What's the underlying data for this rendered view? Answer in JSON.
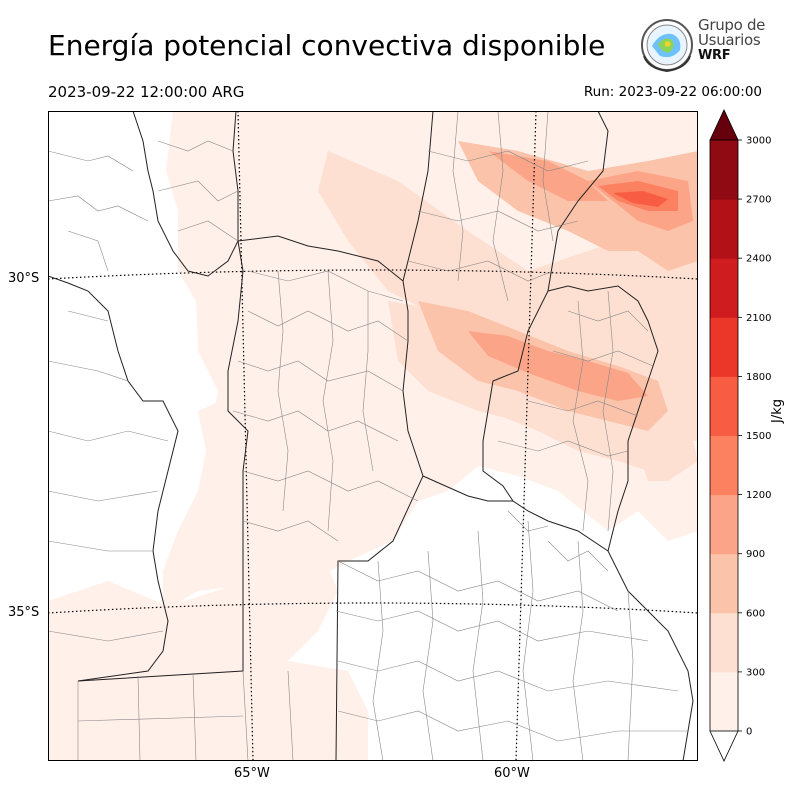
{
  "header": {
    "title": "Energía potencial convectiva disponible",
    "valid_time": "2023-09-22 12:00:00 ARG",
    "run_time": "Run: 2023-09-22 06:00:00"
  },
  "logo": {
    "line1": "Grupo de",
    "line2": "Usuarios",
    "line3": "WRF"
  },
  "map": {
    "lat_labels": [
      "30°S",
      "35°S"
    ],
    "lon_labels": [
      "65°W",
      "60°W"
    ]
  },
  "colorbar": {
    "unit": "J/kg",
    "ticks": [
      "0",
      "300",
      "600",
      "900",
      "1200",
      "1500",
      "1800",
      "2100",
      "2400",
      "2700",
      "3000"
    ],
    "colors": [
      "#fff0ea",
      "#fee0d2",
      "#fcc3ab",
      "#fca487",
      "#fc8161",
      "#f85d44",
      "#eb372a",
      "#cf1c1f",
      "#b11117",
      "#8f0a12"
    ],
    "over_color": "#67000d",
    "under_color": "#ffffff"
  }
}
